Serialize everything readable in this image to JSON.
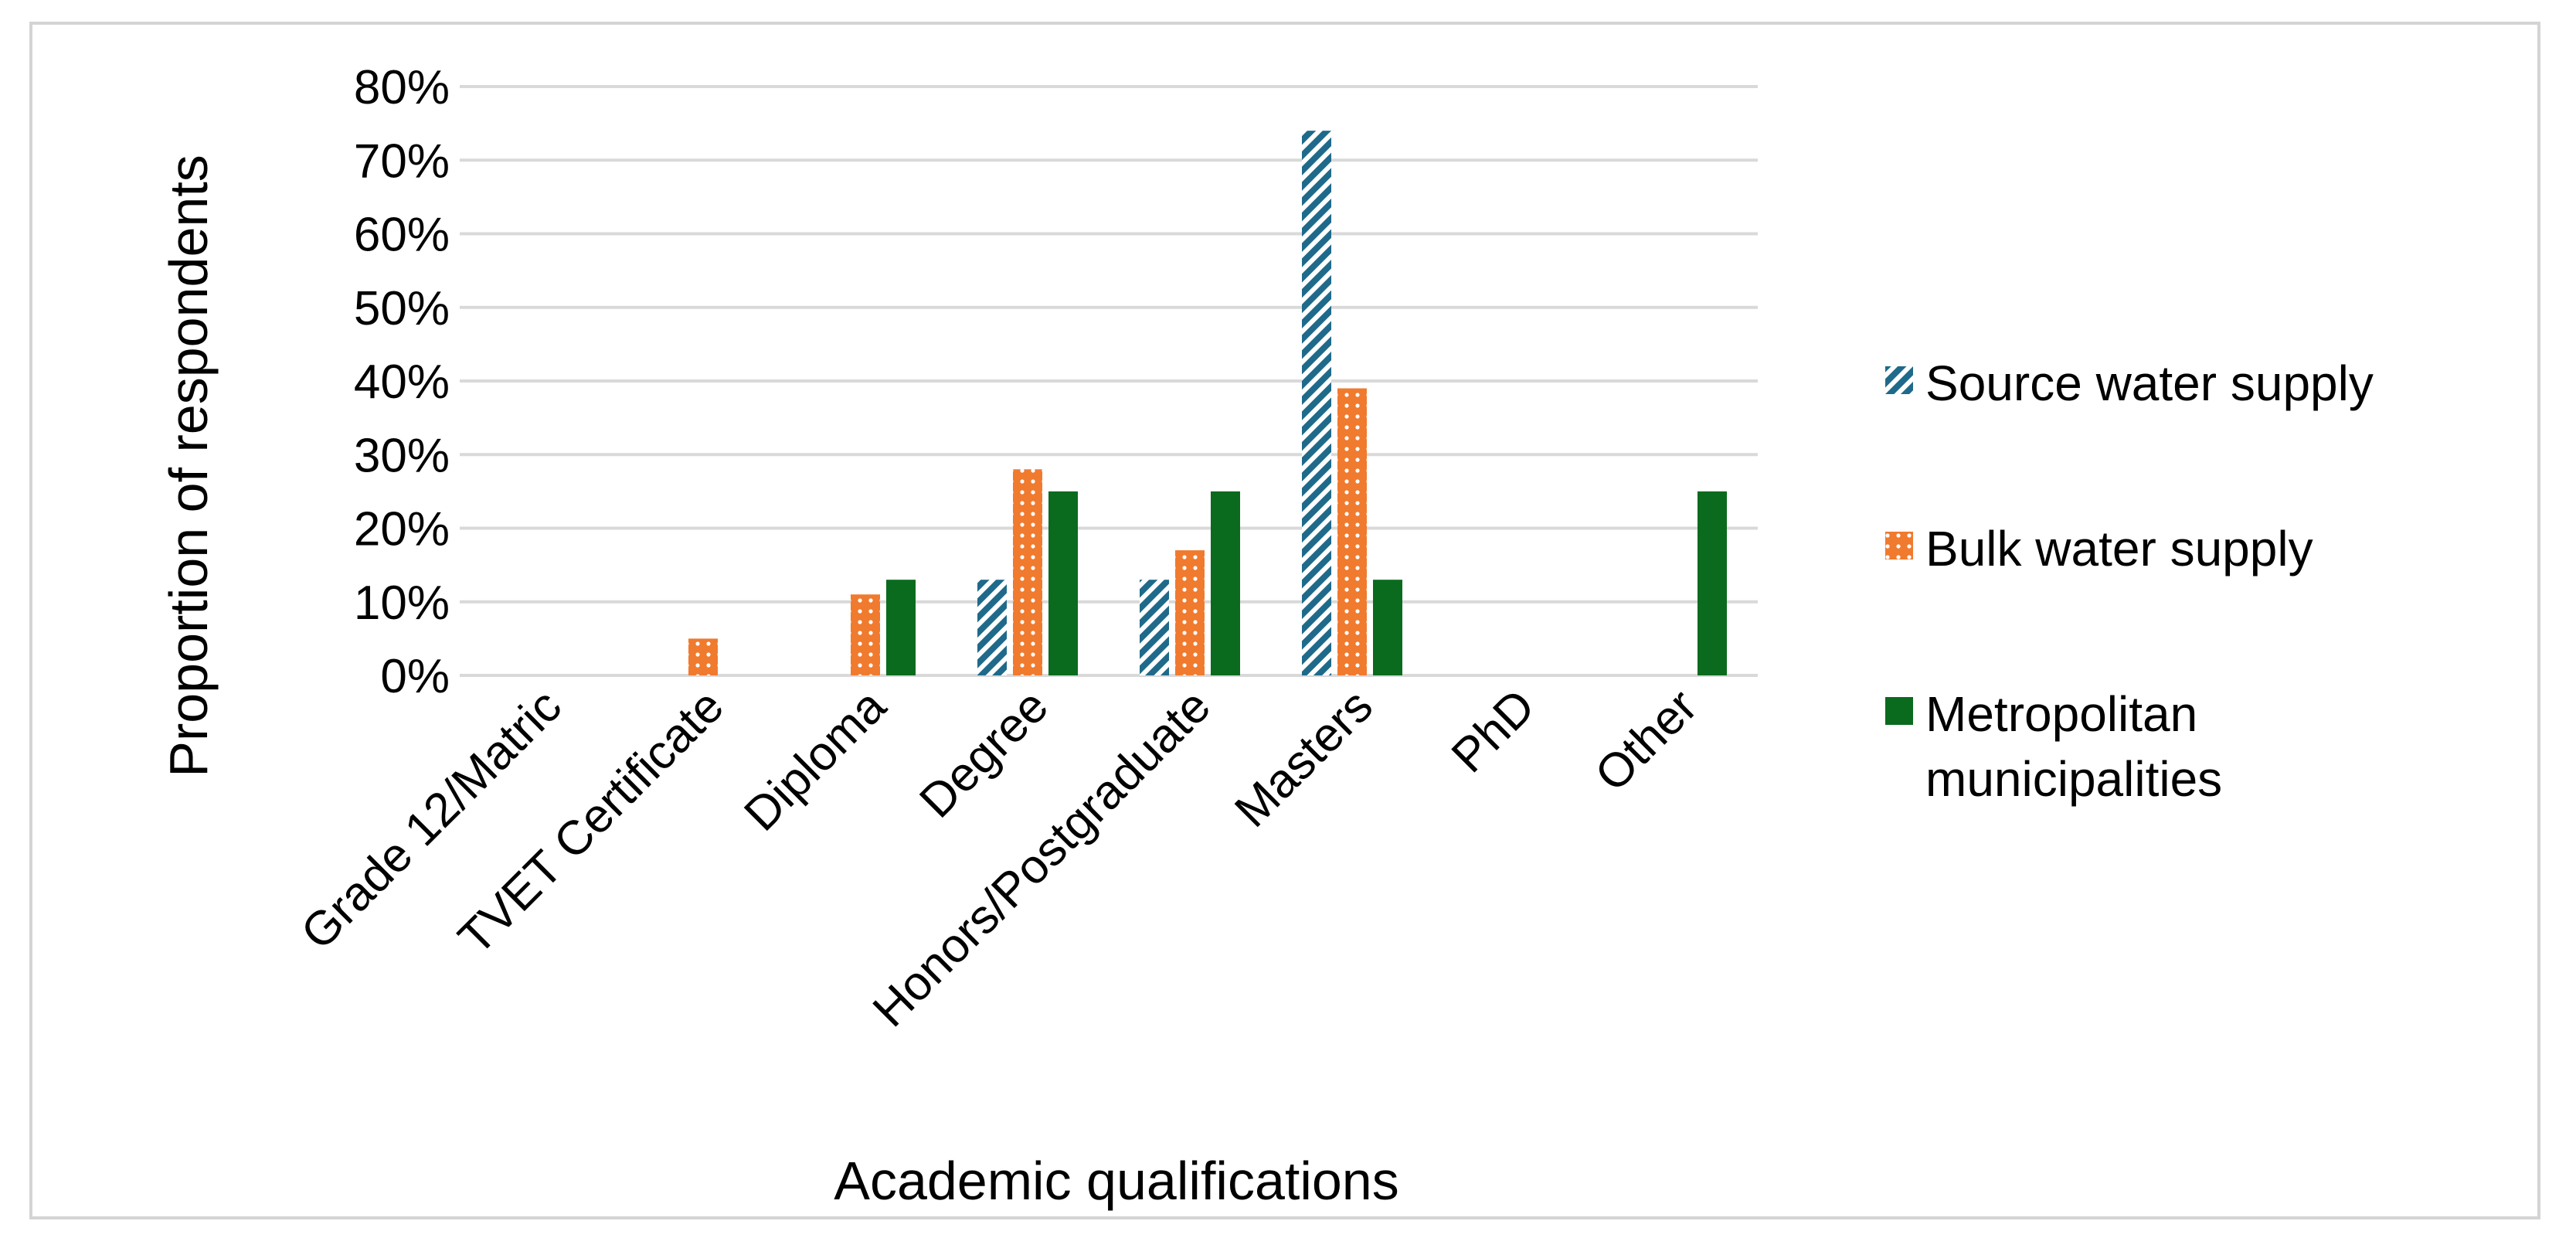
{
  "chart_data": {
    "type": "bar",
    "xlabel": "Academic qualifications",
    "ylabel": "Proportion of respondents",
    "ylim": [
      0,
      80
    ],
    "yticks": [
      "0%",
      "10%",
      "20%",
      "30%",
      "40%",
      "50%",
      "60%",
      "70%",
      "80%"
    ],
    "grid": true,
    "legend_position": "right",
    "categories": [
      "Grade 12/Matric",
      "TVET Certificate",
      "Diploma",
      "Degree",
      "Honors/Postgraduate",
      "Masters",
      "PhD",
      "Other"
    ],
    "series": [
      {
        "name": "Source water supply",
        "color": "#1f6a8a",
        "pattern": "diagonal-stripes",
        "values": [
          0,
          0,
          0,
          13,
          13,
          74,
          0,
          0
        ]
      },
      {
        "name": "Bulk water supply",
        "color": "#f07a2e",
        "pattern": "dots",
        "values": [
          0,
          5,
          11,
          28,
          17,
          39,
          0,
          0
        ]
      },
      {
        "name": "Metropolitan municipalities",
        "color": "#0a6b1e",
        "pattern": "solid",
        "values": [
          0,
          0,
          13,
          25,
          25,
          13,
          0,
          25
        ]
      }
    ]
  }
}
